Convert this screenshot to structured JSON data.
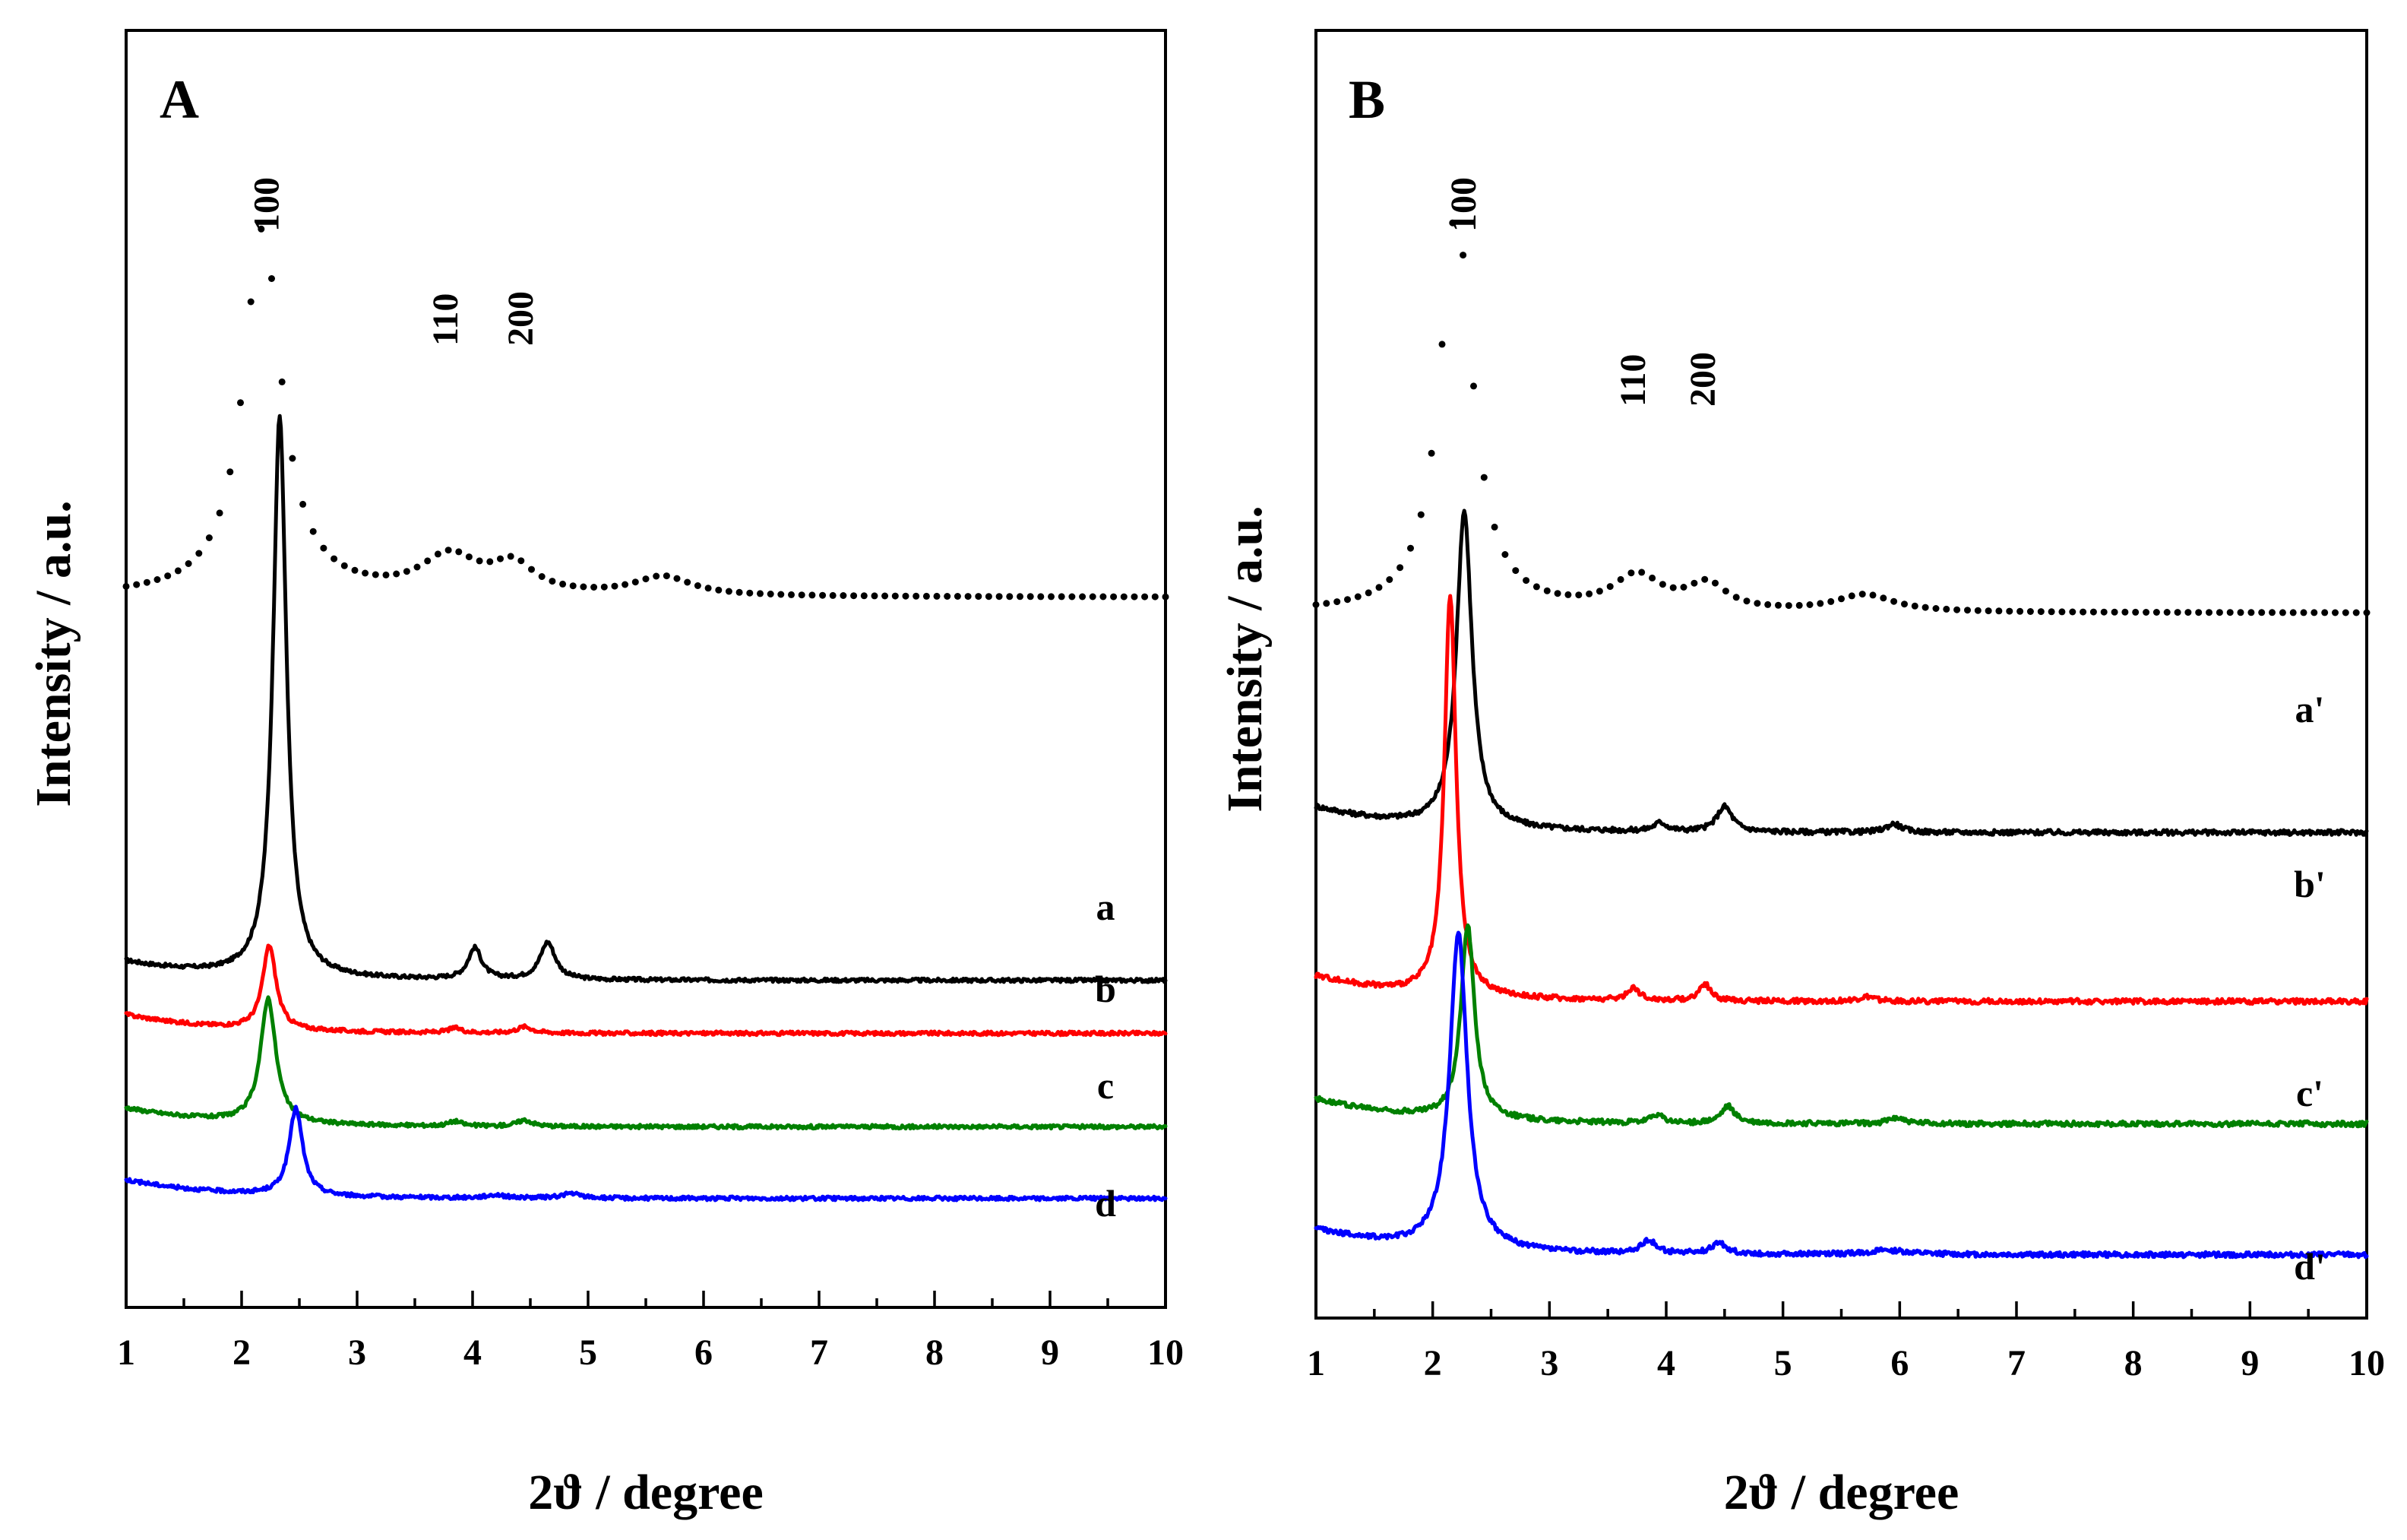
{
  "chart_data": [
    {
      "panel": "A",
      "type": "line",
      "xlabel": "2ϑ / degree",
      "ylabel": "Intensity / a.u.",
      "xlim": [
        1,
        10
      ],
      "xticks": [
        "1",
        "2",
        "3",
        "4",
        "5",
        "6",
        "7",
        "8",
        "9",
        "10"
      ],
      "peak_labels": [
        {
          "text": "100",
          "x": 2.2
        },
        {
          "text": "110",
          "x": 3.75
        },
        {
          "text": "200",
          "x": 4.4
        }
      ],
      "series": [
        {
          "name": "reference",
          "label": "",
          "color": "#000000",
          "dashed": true,
          "baseline": 1.78,
          "peaks": [
            {
              "x": 2.18,
              "h": 1.18,
              "w": 0.2
            },
            {
              "x": 3.8,
              "h": 0.12,
              "w": 0.3
            },
            {
              "x": 4.35,
              "h": 0.09,
              "w": 0.22
            },
            {
              "x": 5.65,
              "h": 0.06,
              "w": 0.3
            }
          ]
        },
        {
          "name": "a",
          "label": "a",
          "color": "#000000",
          "dashed": false,
          "baseline": 0.55,
          "peaks": [
            {
              "x": 2.33,
              "h": 1.8,
              "w": 0.07
            },
            {
              "x": 4.02,
              "h": 0.1,
              "w": 0.07
            },
            {
              "x": 4.65,
              "h": 0.12,
              "w": 0.08
            }
          ]
        },
        {
          "name": "b",
          "label": "b",
          "color": "#ff0000",
          "dashed": false,
          "baseline": 0.38,
          "peaks": [
            {
              "x": 2.24,
              "h": 0.27,
              "w": 0.07
            },
            {
              "x": 3.85,
              "h": 0.015,
              "w": 0.07
            },
            {
              "x": 4.45,
              "h": 0.02,
              "w": 0.08
            }
          ]
        },
        {
          "name": "c",
          "label": "c",
          "color": "#008000",
          "dashed": false,
          "baseline": 0.08,
          "peaks": [
            {
              "x": 2.23,
              "h": 0.4,
              "w": 0.08
            },
            {
              "x": 3.85,
              "h": 0.015,
              "w": 0.07
            },
            {
              "x": 4.45,
              "h": 0.02,
              "w": 0.08
            }
          ]
        },
        {
          "name": "d",
          "label": "d",
          "color": "#0000ff",
          "dashed": false,
          "baseline": -0.15,
          "peaks": [
            {
              "x": 2.47,
              "h": 0.28,
              "w": 0.07
            },
            {
              "x": 4.2,
              "h": 0.01,
              "w": 0.1
            },
            {
              "x": 4.85,
              "h": 0.015,
              "w": 0.1
            }
          ]
        }
      ]
    },
    {
      "panel": "B",
      "type": "line",
      "xlabel": "2ϑ / degree",
      "ylabel": "Intensity / a.u.",
      "xlim": [
        1,
        10
      ],
      "xticks": [
        "1",
        "2",
        "3",
        "4",
        "5",
        "6",
        "7",
        "8",
        "9",
        "10"
      ],
      "peak_labels": [
        {
          "text": "100",
          "x": 2.25
        },
        {
          "text": "110",
          "x": 3.7
        },
        {
          "text": "200",
          "x": 4.3
        }
      ],
      "series": [
        {
          "name": "reference",
          "label": "",
          "color": "#000000",
          "dashed": true,
          "baseline": 1.62,
          "peaks": [
            {
              "x": 2.2,
              "h": 0.95,
              "w": 0.17
            },
            {
              "x": 3.75,
              "h": 0.08,
              "w": 0.25
            },
            {
              "x": 4.35,
              "h": 0.06,
              "w": 0.2
            },
            {
              "x": 5.7,
              "h": 0.04,
              "w": 0.3
            }
          ]
        },
        {
          "name": "a'",
          "label": "a'",
          "color": "#000000",
          "dashed": false,
          "baseline": 1.1,
          "peaks": [
            {
              "x": 2.27,
              "h": 0.75,
              "w": 0.08
            },
            {
              "x": 3.95,
              "h": 0.02,
              "w": 0.07
            },
            {
              "x": 4.5,
              "h": 0.06,
              "w": 0.08
            },
            {
              "x": 5.95,
              "h": 0.02,
              "w": 0.08
            }
          ]
        },
        {
          "name": "b'",
          "label": "b'",
          "color": "#ff0000",
          "dashed": false,
          "baseline": 0.7,
          "peaks": [
            {
              "x": 2.15,
              "h": 0.95,
              "w": 0.06
            },
            {
              "x": 3.72,
              "h": 0.03,
              "w": 0.06
            },
            {
              "x": 4.33,
              "h": 0.04,
              "w": 0.06
            },
            {
              "x": 5.72,
              "h": 0.01,
              "w": 0.08
            }
          ]
        },
        {
          "name": "c'",
          "label": "c'",
          "color": "#008000",
          "dashed": false,
          "baseline": 0.41,
          "peaks": [
            {
              "x": 2.3,
              "h": 0.46,
              "w": 0.07
            },
            {
              "x": 3.92,
              "h": 0.02,
              "w": 0.06
            },
            {
              "x": 4.53,
              "h": 0.04,
              "w": 0.07
            },
            {
              "x": 5.97,
              "h": 0.015,
              "w": 0.08
            }
          ]
        },
        {
          "name": "d'",
          "label": "d'",
          "color": "#0000ff",
          "dashed": false,
          "baseline": 0.1,
          "peaks": [
            {
              "x": 2.22,
              "h": 0.75,
              "w": 0.09
            },
            {
              "x": 3.85,
              "h": 0.03,
              "w": 0.08
            },
            {
              "x": 4.45,
              "h": 0.025,
              "w": 0.08
            },
            {
              "x": 5.9,
              "h": 0.01,
              "w": 0.2
            }
          ]
        }
      ]
    }
  ]
}
